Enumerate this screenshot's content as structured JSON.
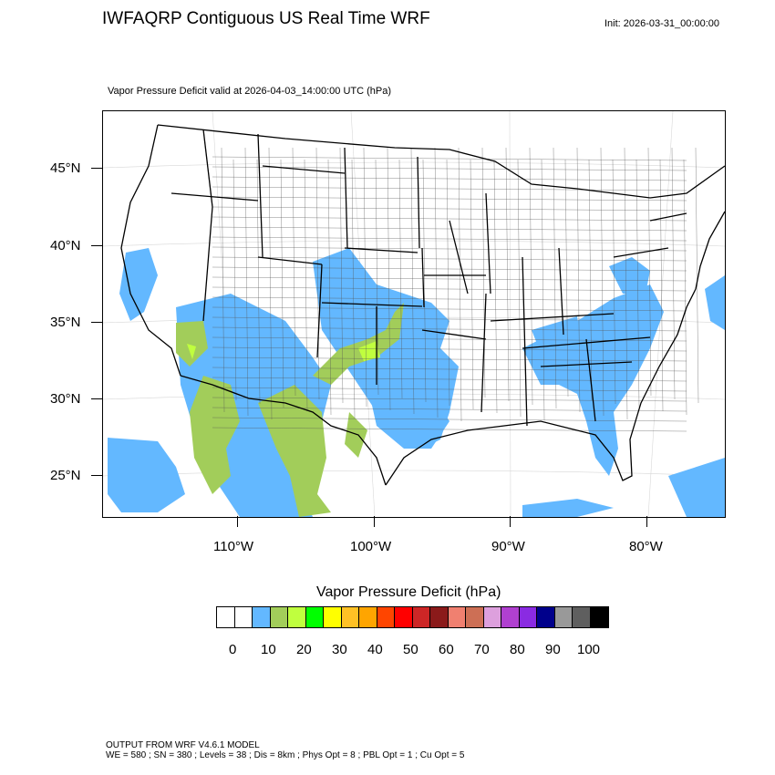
{
  "header": {
    "title": "IWFAQRP Contiguous US Real Time WRF",
    "init": "Init: 2026-03-31_00:00:00",
    "subtitle": "Vapor Pressure Deficit valid at 2026-04-03_14:00:00 UTC   (hPa)"
  },
  "map": {
    "lat_labels": [
      "45°N",
      "40°N",
      "35°N",
      "30°N",
      "25°N"
    ],
    "lon_labels": [
      "110°W",
      "100°W",
      "90°W",
      "80°W"
    ],
    "fill_colors": {
      "light": "#63b8ff",
      "mid": "#a2cd5a",
      "high": "#c0ff3e",
      "land": "#ffffff"
    }
  },
  "colorbar": {
    "title": "Vapor Pressure Deficit  (hPa)",
    "colors": [
      "#ffffff",
      "#ffffff",
      "#63b8ff",
      "#a2cd5a",
      "#c0ff3e",
      "#00ff00",
      "#ffff00",
      "#ffc125",
      "#ffa500",
      "#ff4500",
      "#ff0000",
      "#cd2626",
      "#8b1a1a",
      "#f08070",
      "#cd6f55",
      "#dda0dd",
      "#b040d0",
      "#8a2be2",
      "#00008b",
      "#999999",
      "#5f5f5f",
      "#000000"
    ],
    "labels": [
      "0",
      "10",
      "20",
      "30",
      "40",
      "50",
      "60",
      "70",
      "80",
      "90",
      "100"
    ]
  },
  "footer": {
    "line1": "OUTPUT FROM WRF V4.6.1 MODEL",
    "line2": "WE = 580 ; SN = 380 ; Levels = 38 ; Dis = 8km ; Phys Opt = 8 ; PBL Opt = 1 ; Cu Opt = 5"
  }
}
